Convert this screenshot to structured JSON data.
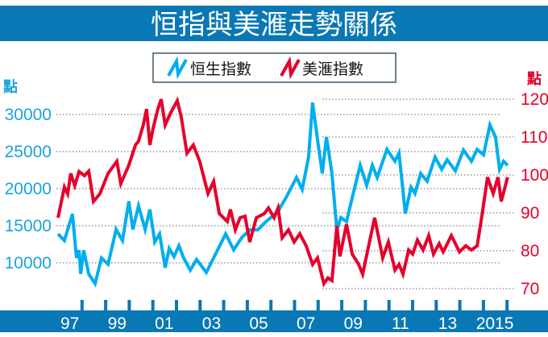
{
  "chart_data": {
    "type": "line",
    "title": "恒指與美滙走勢關係",
    "legend": [
      "恒生指數",
      "美滙指數"
    ],
    "legend_position": "top-center",
    "left_axis": {
      "unit_label": "點",
      "ticks": [
        10000,
        15000,
        20000,
        25000,
        30000
      ],
      "range": [
        5000,
        32500
      ]
    },
    "right_axis": {
      "unit_label": "點",
      "ticks": [
        70,
        80,
        90,
        100,
        110,
        120
      ],
      "range": [
        66,
        122
      ]
    },
    "x_axis": {
      "tick_labels": [
        "97",
        "99",
        "01",
        "03",
        "05",
        "07",
        "09",
        "11",
        "13",
        "2015"
      ],
      "label_years": [
        1997,
        1999,
        2001,
        2003,
        2005,
        2007,
        2009,
        2011,
        2013,
        2015
      ],
      "range": [
        1996.75,
        2016.2
      ]
    },
    "grid": true,
    "colors": {
      "hsi": "#00aeef",
      "usd": "#e4002b",
      "band": "#0a78b4"
    },
    "series": [
      {
        "name": "恒生指數",
        "axis": "left",
        "points": [
          [
            1997.0,
            13900
          ],
          [
            1997.27,
            13000
          ],
          [
            1997.61,
            16600
          ],
          [
            1997.78,
            10650
          ],
          [
            1997.89,
            11700
          ],
          [
            1997.96,
            8500
          ],
          [
            1998.09,
            11700
          ],
          [
            1998.3,
            8500
          ],
          [
            1998.57,
            7200
          ],
          [
            1998.84,
            10650
          ],
          [
            1999.12,
            9800
          ],
          [
            1999.46,
            14500
          ],
          [
            1999.73,
            13000
          ],
          [
            2000.0,
            18300
          ],
          [
            2000.17,
            14500
          ],
          [
            2000.41,
            17700
          ],
          [
            2000.69,
            14500
          ],
          [
            2000.89,
            17200
          ],
          [
            2001.1,
            12800
          ],
          [
            2001.3,
            13900
          ],
          [
            2001.54,
            9350
          ],
          [
            2001.71,
            11950
          ],
          [
            2001.91,
            10850
          ],
          [
            2002.12,
            12300
          ],
          [
            2002.32,
            10650
          ],
          [
            2002.6,
            9000
          ],
          [
            2002.87,
            10450
          ],
          [
            2003.28,
            8700
          ],
          [
            2003.76,
            11750
          ],
          [
            2004.1,
            13900
          ],
          [
            2004.44,
            11750
          ],
          [
            2004.78,
            13400
          ],
          [
            2005.12,
            14450
          ],
          [
            2005.46,
            14450
          ],
          [
            2005.81,
            15550
          ],
          [
            2006.32,
            16950
          ],
          [
            2006.66,
            18800
          ],
          [
            2007.1,
            21500
          ],
          [
            2007.34,
            19900
          ],
          [
            2007.61,
            24250
          ],
          [
            2007.78,
            31600
          ],
          [
            2008.02,
            25900
          ],
          [
            2008.19,
            22050
          ],
          [
            2008.37,
            26950
          ],
          [
            2008.6,
            22050
          ],
          [
            2008.81,
            14450
          ],
          [
            2008.98,
            16100
          ],
          [
            2009.22,
            15550
          ],
          [
            2009.46,
            18800
          ],
          [
            2009.8,
            23150
          ],
          [
            2010.07,
            20450
          ],
          [
            2010.31,
            23150
          ],
          [
            2010.52,
            21500
          ],
          [
            2010.93,
            25300
          ],
          [
            2011.27,
            23700
          ],
          [
            2011.44,
            24800
          ],
          [
            2011.71,
            16650
          ],
          [
            2011.95,
            20200
          ],
          [
            2012.12,
            19350
          ],
          [
            2012.36,
            22050
          ],
          [
            2012.63,
            21000
          ],
          [
            2012.97,
            24250
          ],
          [
            2013.25,
            22600
          ],
          [
            2013.48,
            23900
          ],
          [
            2013.83,
            22400
          ],
          [
            2014.17,
            25200
          ],
          [
            2014.51,
            23700
          ],
          [
            2014.75,
            25300
          ],
          [
            2015.02,
            24550
          ],
          [
            2015.29,
            28600
          ],
          [
            2015.53,
            26950
          ],
          [
            2015.7,
            22600
          ],
          [
            2015.87,
            23700
          ],
          [
            2016.04,
            23150
          ]
        ]
      },
      {
        "name": "美滙指數",
        "axis": "right",
        "points": [
          [
            1997.0,
            88.7
          ],
          [
            1997.27,
            96.8
          ],
          [
            1997.41,
            95
          ],
          [
            1997.54,
            100.4
          ],
          [
            1997.71,
            97.2
          ],
          [
            1997.89,
            100.9
          ],
          [
            1998.12,
            99.8
          ],
          [
            1998.3,
            101
          ],
          [
            1998.5,
            93
          ],
          [
            1998.77,
            95
          ],
          [
            1999.12,
            100.4
          ],
          [
            1999.49,
            103.6
          ],
          [
            1999.66,
            97.7
          ],
          [
            2000.0,
            102.6
          ],
          [
            2000.28,
            107.9
          ],
          [
            2000.41,
            108.9
          ],
          [
            2000.61,
            113.2
          ],
          [
            2000.75,
            117.4
          ],
          [
            2000.89,
            107.9
          ],
          [
            2001.02,
            112.1
          ],
          [
            2001.23,
            117.4
          ],
          [
            2001.37,
            120
          ],
          [
            2001.54,
            113.2
          ],
          [
            2001.77,
            116.4
          ],
          [
            2002.05,
            119.6
          ],
          [
            2002.22,
            115.3
          ],
          [
            2002.46,
            105.7
          ],
          [
            2002.73,
            107.9
          ],
          [
            2003.0,
            103.6
          ],
          [
            2003.35,
            95.1
          ],
          [
            2003.59,
            98.3
          ],
          [
            2003.83,
            89.8
          ],
          [
            2004.17,
            87.7
          ],
          [
            2004.3,
            90.9
          ],
          [
            2004.51,
            85.5
          ],
          [
            2004.71,
            88.7
          ],
          [
            2004.92,
            89.1
          ],
          [
            2005.12,
            82.3
          ],
          [
            2005.4,
            88.7
          ],
          [
            2005.74,
            89.8
          ],
          [
            2005.91,
            91.3
          ],
          [
            2006.15,
            88.7
          ],
          [
            2006.32,
            91.3
          ],
          [
            2006.49,
            83.4
          ],
          [
            2006.76,
            85.5
          ],
          [
            2007.0,
            82.3
          ],
          [
            2007.24,
            84.5
          ],
          [
            2007.51,
            81.3
          ],
          [
            2007.78,
            76.4
          ],
          [
            2007.99,
            78.1
          ],
          [
            2008.26,
            71.3
          ],
          [
            2008.43,
            72.8
          ],
          [
            2008.6,
            72.1
          ],
          [
            2008.81,
            86.6
          ],
          [
            2008.94,
            78.5
          ],
          [
            2009.22,
            87
          ],
          [
            2009.46,
            79.1
          ],
          [
            2009.73,
            76.4
          ],
          [
            2009.9,
            73.8
          ],
          [
            2010.41,
            88.7
          ],
          [
            2010.75,
            78.1
          ],
          [
            2010.99,
            82.3
          ],
          [
            2011.27,
            74.9
          ],
          [
            2011.44,
            76.4
          ],
          [
            2011.61,
            73.8
          ],
          [
            2011.85,
            80.2
          ],
          [
            2012.02,
            79.1
          ],
          [
            2012.22,
            82.8
          ],
          [
            2012.46,
            80.2
          ],
          [
            2012.7,
            84
          ],
          [
            2012.9,
            79.1
          ],
          [
            2013.14,
            81.9
          ],
          [
            2013.31,
            79.7
          ],
          [
            2013.66,
            84
          ],
          [
            2014.0,
            79.7
          ],
          [
            2014.27,
            81.3
          ],
          [
            2014.51,
            80.2
          ],
          [
            2014.75,
            81.3
          ],
          [
            2014.95,
            89.1
          ],
          [
            2015.19,
            99.4
          ],
          [
            2015.43,
            95.1
          ],
          [
            2015.63,
            99.4
          ],
          [
            2015.77,
            93
          ],
          [
            2016.04,
            99.4
          ]
        ]
      }
    ]
  }
}
